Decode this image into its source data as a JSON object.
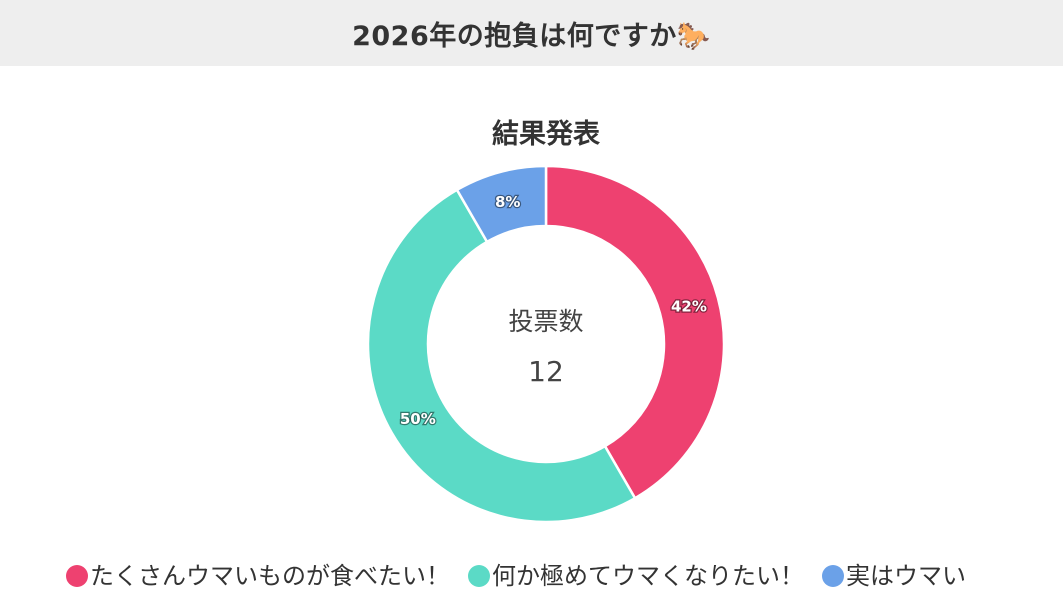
{
  "header": {
    "title": "2026年の抱負は何ですか🐎"
  },
  "chart_data": {
    "type": "pie",
    "variant": "doughnut",
    "title": "結果発表",
    "center_label": "投票数",
    "center_value": "12",
    "categories": [
      "たくさんウマいものが食べたい！",
      "何か極めてウマくなりたい！",
      "実はウマい"
    ],
    "values": [
      5,
      6,
      1
    ],
    "percent_labels": [
      "42%",
      "50%",
      "8%"
    ],
    "colors": [
      "#ee4170",
      "#5bdac6",
      "#6ba1e8"
    ],
    "legend_position": "bottom"
  }
}
